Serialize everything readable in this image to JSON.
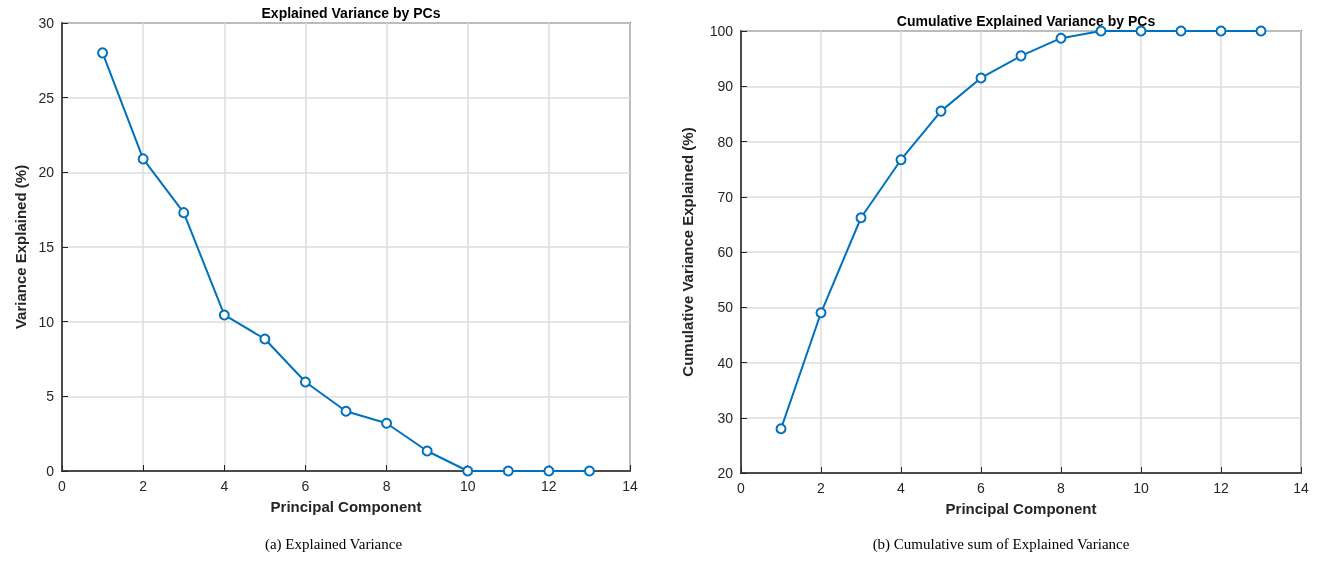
{
  "chart_data": [
    {
      "type": "line",
      "title": "Explained Variance by PCs",
      "xlabel": "Principal Component",
      "ylabel": "Variance Explained (%)",
      "x": [
        1,
        2,
        3,
        4,
        5,
        6,
        7,
        8,
        9,
        10,
        11,
        12,
        13
      ],
      "values": [
        28.0,
        20.9,
        17.3,
        10.45,
        8.84,
        5.96,
        4.0,
        3.2,
        1.34,
        0,
        0,
        0,
        0
      ],
      "color": "#0072bd",
      "marker": "circle",
      "grid": true,
      "xlim": [
        0,
        14
      ],
      "xticks": [
        0,
        2,
        4,
        6,
        8,
        10,
        12,
        14
      ],
      "ylim": [
        0,
        30
      ],
      "yticks": [
        0,
        5,
        10,
        15,
        20,
        25,
        30
      ],
      "annotations": [
        "(a) Explained Variance"
      ]
    },
    {
      "type": "line",
      "title": "Cumulative Explained Variance by PCs",
      "xlabel": "Principal Component",
      "ylabel": "Cumulative Variance Explained (%)",
      "x": [
        1,
        2,
        3,
        4,
        5,
        6,
        7,
        8,
        9,
        10,
        11,
        12,
        13
      ],
      "values": [
        28.0,
        49.0,
        66.2,
        76.7,
        85.5,
        91.5,
        95.5,
        98.7,
        100,
        100,
        100,
        100,
        100
      ],
      "color": "#0072bd",
      "marker": "circle",
      "grid": true,
      "xlim": [
        0,
        14
      ],
      "xticks": [
        0,
        2,
        4,
        6,
        8,
        10,
        12,
        14
      ],
      "ylim": [
        20,
        100
      ],
      "yticks": [
        20,
        30,
        40,
        50,
        60,
        70,
        80,
        90,
        100
      ],
      "annotations": [
        "(b) Cumulative sum of Explained Variance"
      ]
    }
  ]
}
